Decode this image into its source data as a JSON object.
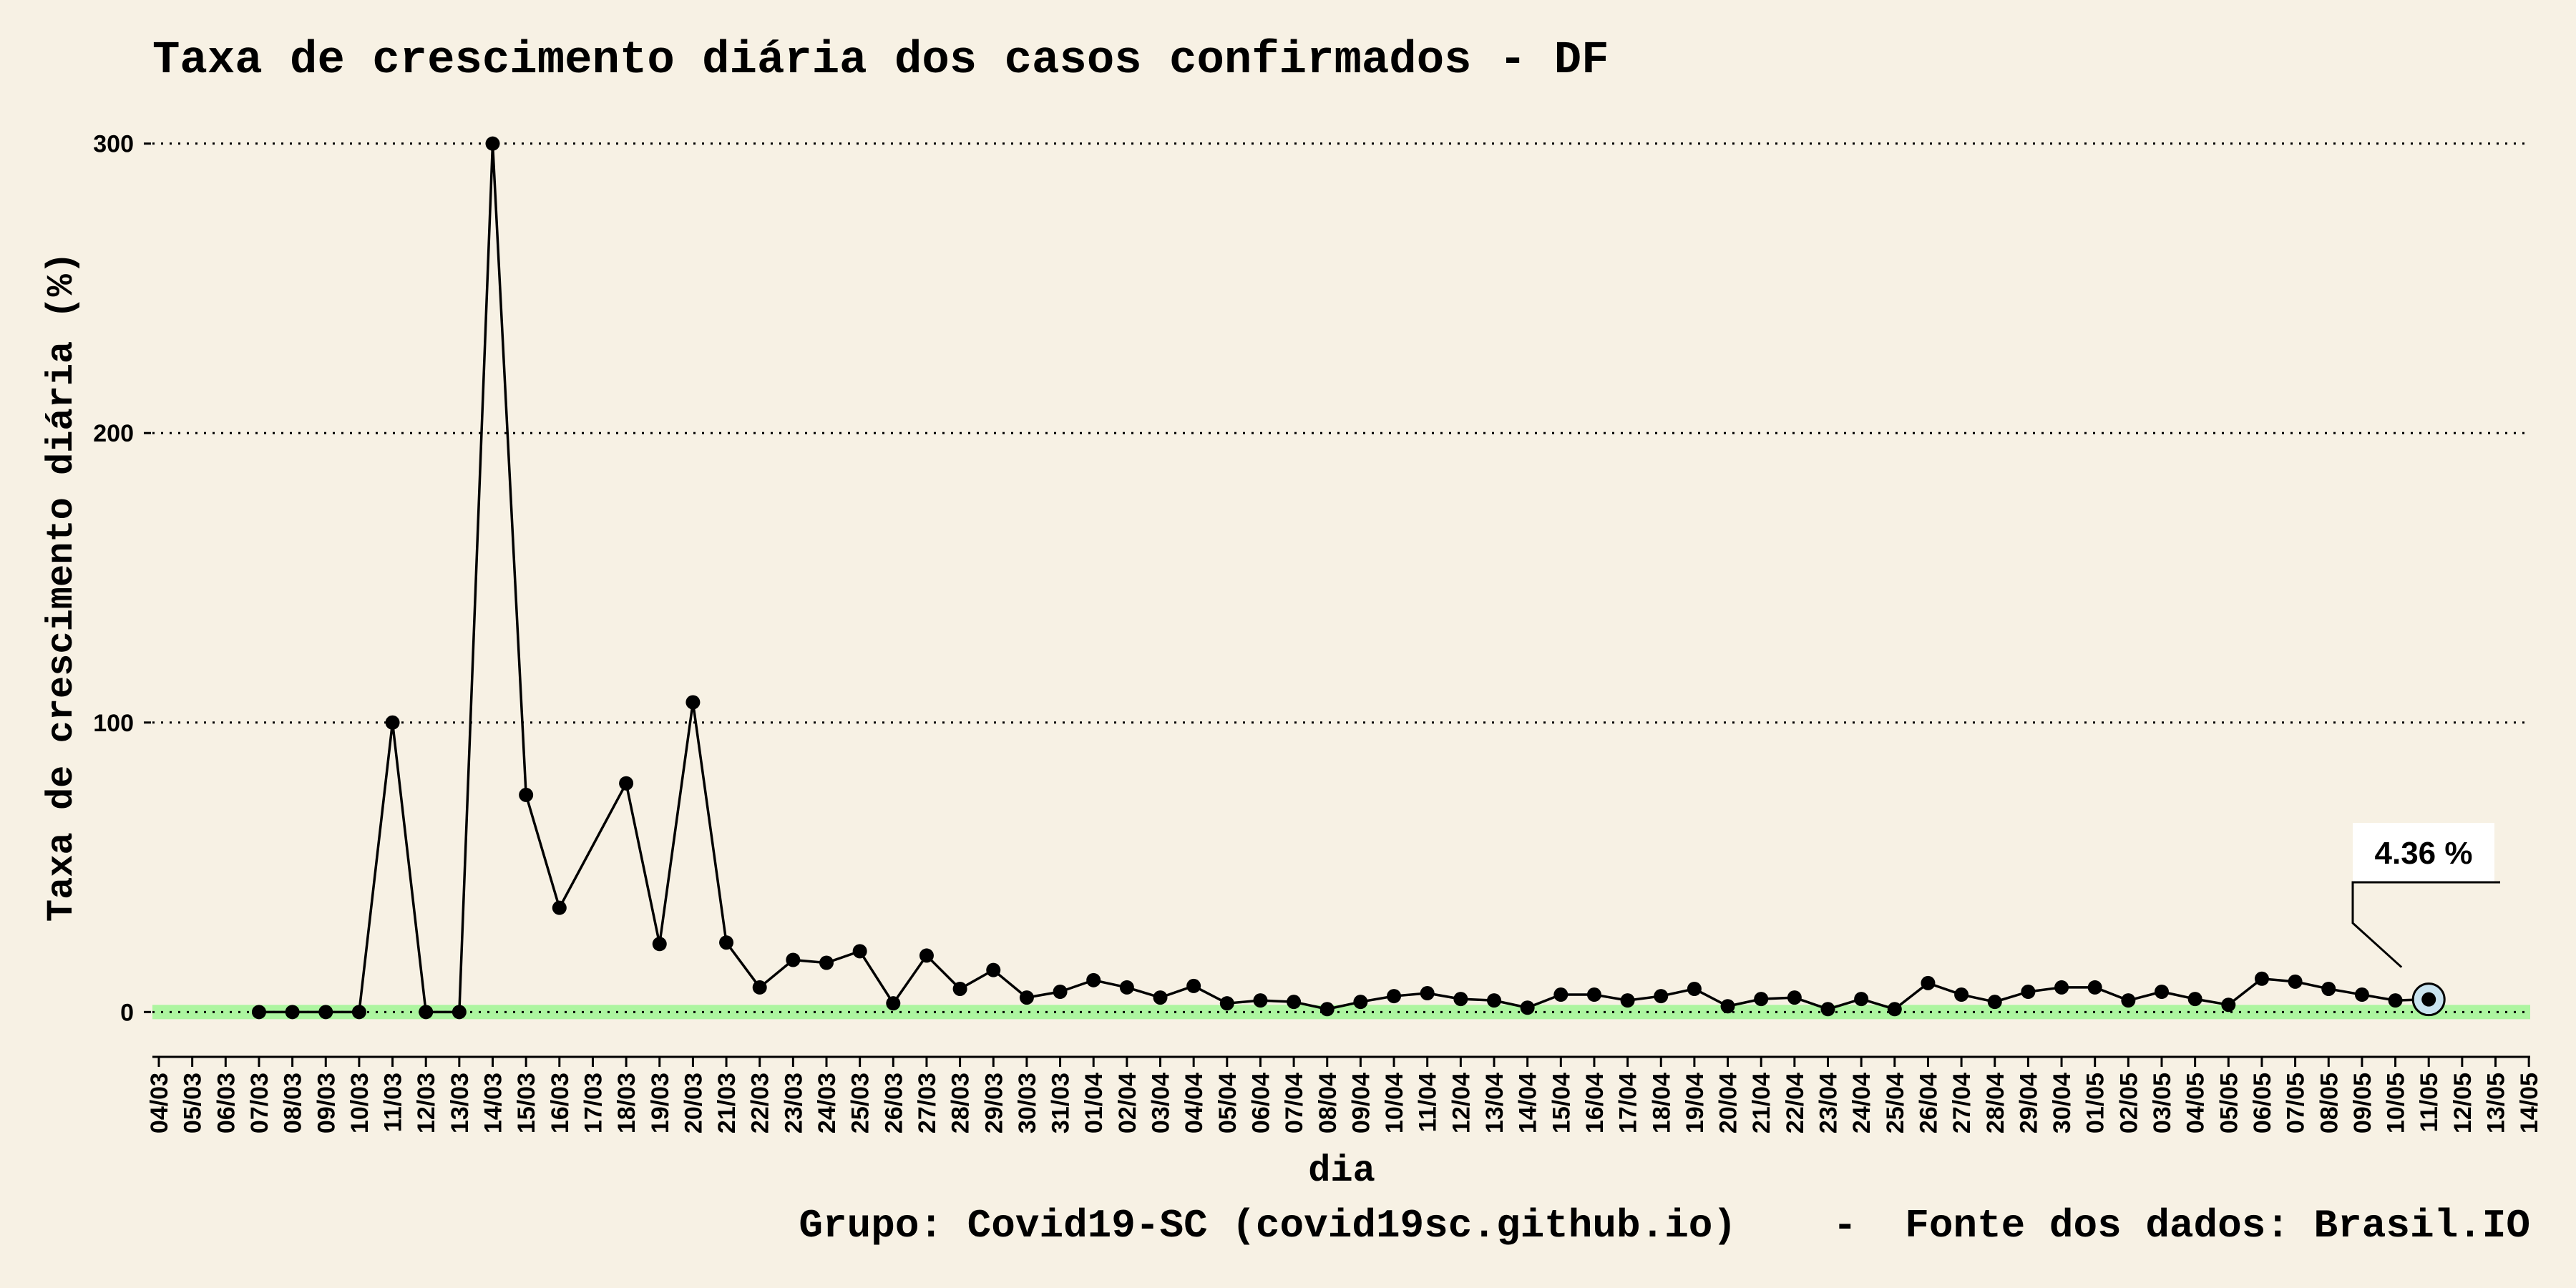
{
  "chart_data": {
    "type": "line",
    "title": "Taxa de crescimento diária dos casos confirmados - DF",
    "xlabel": "dia",
    "ylabel": "Taxa de crescimento diária (%)",
    "caption": "Grupo: Covid19-SC (covid19sc.github.io)    -  Fonte dos dados: Brasil.IO",
    "ylim": [
      -15,
      315
    ],
    "yticks": [
      0,
      100,
      200,
      300
    ],
    "grid": "horizontal dotted",
    "categories": [
      "04/03",
      "05/03",
      "06/03",
      "07/03",
      "08/03",
      "09/03",
      "10/03",
      "11/03",
      "12/03",
      "13/03",
      "14/03",
      "15/03",
      "16/03",
      "17/03",
      "18/03",
      "19/03",
      "20/03",
      "21/03",
      "22/03",
      "23/03",
      "24/03",
      "25/03",
      "26/03",
      "27/03",
      "28/03",
      "29/03",
      "30/03",
      "31/03",
      "01/04",
      "02/04",
      "03/04",
      "04/04",
      "05/04",
      "06/04",
      "07/04",
      "08/04",
      "09/04",
      "10/04",
      "11/04",
      "12/04",
      "13/04",
      "14/04",
      "15/04",
      "16/04",
      "17/04",
      "18/04",
      "19/04",
      "20/04",
      "21/04",
      "22/04",
      "23/04",
      "24/04",
      "25/04",
      "26/04",
      "27/04",
      "28/04",
      "29/04",
      "30/04",
      "01/05",
      "02/05",
      "03/05",
      "04/05",
      "05/05",
      "06/05",
      "07/05",
      "08/05",
      "09/05",
      "10/05",
      "11/05",
      "12/05",
      "13/05",
      "14/05"
    ],
    "series": [
      {
        "values": [
          null,
          null,
          null,
          0,
          0,
          0,
          0,
          100,
          0,
          0,
          300,
          75,
          36,
          null,
          79,
          23.5,
          107,
          24,
          8.5,
          18,
          17,
          21,
          3,
          19.5,
          8,
          14.5,
          5,
          7,
          11,
          8.5,
          5,
          9,
          3,
          4,
          3.5,
          1,
          3.5,
          5.5,
          6.5,
          4.5,
          4,
          1.5,
          6,
          6,
          4,
          5.5,
          8,
          2,
          4.5,
          5,
          1,
          4.5,
          1,
          10,
          6,
          3.5,
          7,
          8.5,
          8.5,
          4,
          7,
          4.5,
          2.5,
          11.5,
          10.5,
          8,
          6,
          4,
          4.36,
          null,
          null,
          null
        ],
        "color": "#000000"
      }
    ],
    "zero_band_color": "#adf5a0",
    "highlight": {
      "category": "11/05",
      "value": 4.36,
      "label": "4.36 %"
    }
  }
}
